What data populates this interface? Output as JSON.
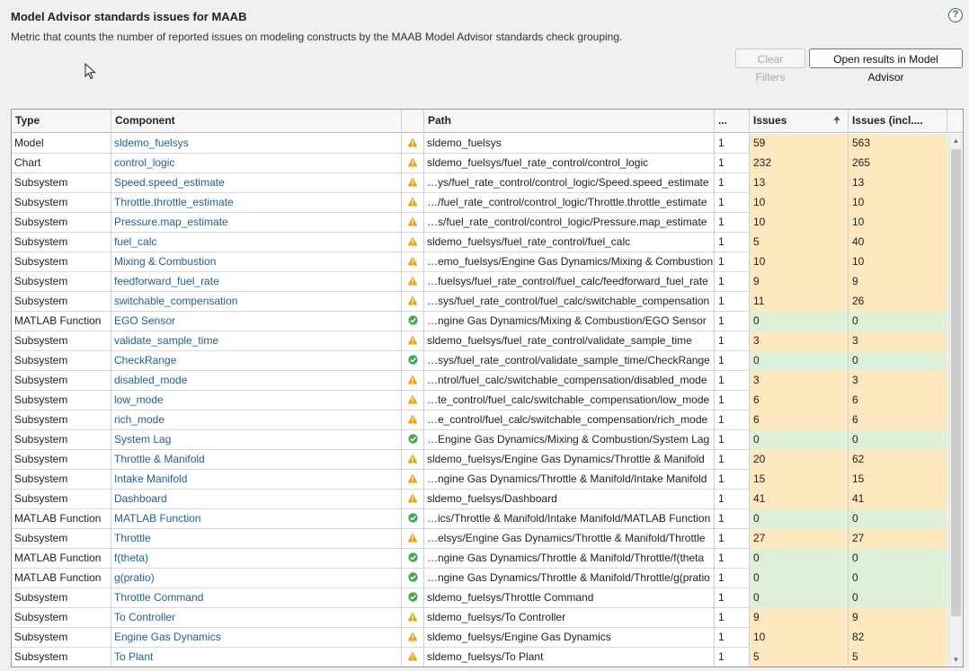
{
  "header": {
    "title": "Model Advisor standards issues for MAAB",
    "description": "Metric that counts the number of reported issues on modeling constructs by the MAAB Model Advisor standards check grouping.",
    "help_icon": "question-icon",
    "help_label": "?"
  },
  "toolbar": {
    "clear_filters_label": "Clear Filters",
    "open_results_label": "Open results in Model Advisor"
  },
  "table": {
    "columns": {
      "type": "Type",
      "component": "Component",
      "status": "",
      "path": "Path",
      "count": "...",
      "issues": "Issues",
      "issues_incl": "Issues (incl...."
    },
    "sort_column": "Issues",
    "sort_direction": "ascending",
    "status_colors": {
      "warning": "#f0a30a",
      "ok": "#3fae49",
      "warning_cell": "#fde8c0",
      "ok_cell": "#dff0d8",
      "link": "#1f5fa6"
    },
    "rows": [
      {
        "type": "Model",
        "component": "sldemo_fuelsys",
        "status": "warning",
        "path": "sldemo_fuelsys",
        "count": "1",
        "issues": "59",
        "issues_incl": "563"
      },
      {
        "type": "Chart",
        "component": "control_logic",
        "status": "warning",
        "path": "sldemo_fuelsys/fuel_rate_control/control_logic",
        "count": "1",
        "issues": "232",
        "issues_incl": "265"
      },
      {
        "type": "Subsystem",
        "component": "Speed.speed_estimate",
        "status": "warning",
        "path": "…ys/fuel_rate_control/control_logic/Speed.speed_estimate",
        "count": "1",
        "issues": "13",
        "issues_incl": "13"
      },
      {
        "type": "Subsystem",
        "component": "Throttle.throttle_estimate",
        "status": "warning",
        "path": "…/fuel_rate_control/control_logic/Throttle.throttle_estimate",
        "count": "1",
        "issues": "10",
        "issues_incl": "10"
      },
      {
        "type": "Subsystem",
        "component": "Pressure.map_estimate",
        "status": "warning",
        "path": "…s/fuel_rate_control/control_logic/Pressure.map_estimate",
        "count": "1",
        "issues": "10",
        "issues_incl": "10"
      },
      {
        "type": "Subsystem",
        "component": "fuel_calc",
        "status": "warning",
        "path": "sldemo_fuelsys/fuel_rate_control/fuel_calc",
        "count": "1",
        "issues": "5",
        "issues_incl": "40"
      },
      {
        "type": "Subsystem",
        "component": "Mixing & Combustion",
        "status": "warning",
        "path": "…emo_fuelsys/Engine Gas Dynamics/Mixing & Combustion",
        "count": "1",
        "issues": "10",
        "issues_incl": "10"
      },
      {
        "type": "Subsystem",
        "component": "feedforward_fuel_rate",
        "status": "warning",
        "path": "…fuelsys/fuel_rate_control/fuel_calc/feedforward_fuel_rate",
        "count": "1",
        "issues": "9",
        "issues_incl": "9"
      },
      {
        "type": "Subsystem",
        "component": "switchable_compensation",
        "status": "warning",
        "path": "…sys/fuel_rate_control/fuel_calc/switchable_compensation",
        "count": "1",
        "issues": "11",
        "issues_incl": "26"
      },
      {
        "type": "MATLAB Function",
        "component": "EGO Sensor",
        "status": "ok",
        "path": "…ngine Gas Dynamics/Mixing & Combustion/EGO Sensor",
        "count": "1",
        "issues": "0",
        "issues_incl": "0"
      },
      {
        "type": "Subsystem",
        "component": "validate_sample_time",
        "status": "warning",
        "path": "sldemo_fuelsys/fuel_rate_control/validate_sample_time",
        "count": "1",
        "issues": "3",
        "issues_incl": "3"
      },
      {
        "type": "Subsystem",
        "component": "CheckRange",
        "status": "ok",
        "path": "…sys/fuel_rate_control/validate_sample_time/CheckRange",
        "count": "1",
        "issues": "0",
        "issues_incl": "0"
      },
      {
        "type": "Subsystem",
        "component": "disabled_mode",
        "status": "warning",
        "path": "…ntrol/fuel_calc/switchable_compensation/disabled_mode",
        "count": "1",
        "issues": "3",
        "issues_incl": "3"
      },
      {
        "type": "Subsystem",
        "component": "low_mode",
        "status": "warning",
        "path": "…te_control/fuel_calc/switchable_compensation/low_mode",
        "count": "1",
        "issues": "6",
        "issues_incl": "6"
      },
      {
        "type": "Subsystem",
        "component": "rich_mode",
        "status": "warning",
        "path": "…e_control/fuel_calc/switchable_compensation/rich_mode",
        "count": "1",
        "issues": "6",
        "issues_incl": "6"
      },
      {
        "type": "Subsystem",
        "component": "System Lag",
        "status": "ok",
        "path": "…Engine Gas Dynamics/Mixing & Combustion/System Lag",
        "count": "1",
        "issues": "0",
        "issues_incl": "0"
      },
      {
        "type": "Subsystem",
        "component": "Throttle & Manifold",
        "status": "warning",
        "path": "sldemo_fuelsys/Engine Gas Dynamics/Throttle & Manifold",
        "count": "1",
        "issues": "20",
        "issues_incl": "62"
      },
      {
        "type": "Subsystem",
        "component": "Intake Manifold",
        "status": "warning",
        "path": "…ngine Gas Dynamics/Throttle & Manifold/Intake Manifold",
        "count": "1",
        "issues": "15",
        "issues_incl": "15"
      },
      {
        "type": "Subsystem",
        "component": "Dashboard",
        "status": "warning",
        "path": "sldemo_fuelsys/Dashboard",
        "count": "1",
        "issues": "41",
        "issues_incl": "41"
      },
      {
        "type": "MATLAB Function",
        "component": "MATLAB Function",
        "status": "ok",
        "path": "…ics/Throttle & Manifold/Intake Manifold/MATLAB Function",
        "count": "1",
        "issues": "0",
        "issues_incl": "0"
      },
      {
        "type": "Subsystem",
        "component": "Throttle",
        "status": "warning",
        "path": "…elsys/Engine Gas Dynamics/Throttle & Manifold/Throttle",
        "count": "1",
        "issues": "27",
        "issues_incl": "27"
      },
      {
        "type": "MATLAB Function",
        "component": "f(theta)",
        "status": "ok",
        "path": "…ngine Gas Dynamics/Throttle & Manifold/Throttle/f(theta",
        "count": "1",
        "issues": "0",
        "issues_incl": "0"
      },
      {
        "type": "MATLAB Function",
        "component": "g(pratio)",
        "status": "ok",
        "path": "…ngine Gas Dynamics/Throttle & Manifold/Throttle/g(pratio",
        "count": "1",
        "issues": "0",
        "issues_incl": "0"
      },
      {
        "type": "Subsystem",
        "component": "Throttle Command",
        "status": "ok",
        "path": "sldemo_fuelsys/Throttle Command",
        "count": "1",
        "issues": "0",
        "issues_incl": "0"
      },
      {
        "type": "Subsystem",
        "component": "To Controller",
        "status": "warning",
        "path": "sldemo_fuelsys/To Controller",
        "count": "1",
        "issues": "9",
        "issues_incl": "9"
      },
      {
        "type": "Subsystem",
        "component": "Engine Gas Dynamics",
        "status": "warning",
        "path": "sldemo_fuelsys/Engine Gas Dynamics",
        "count": "1",
        "issues": "10",
        "issues_incl": "82"
      },
      {
        "type": "Subsystem",
        "component": "To Plant",
        "status": "warning",
        "path": "sldemo_fuelsys/To Plant",
        "count": "1",
        "issues": "5",
        "issues_incl": "5"
      }
    ]
  }
}
